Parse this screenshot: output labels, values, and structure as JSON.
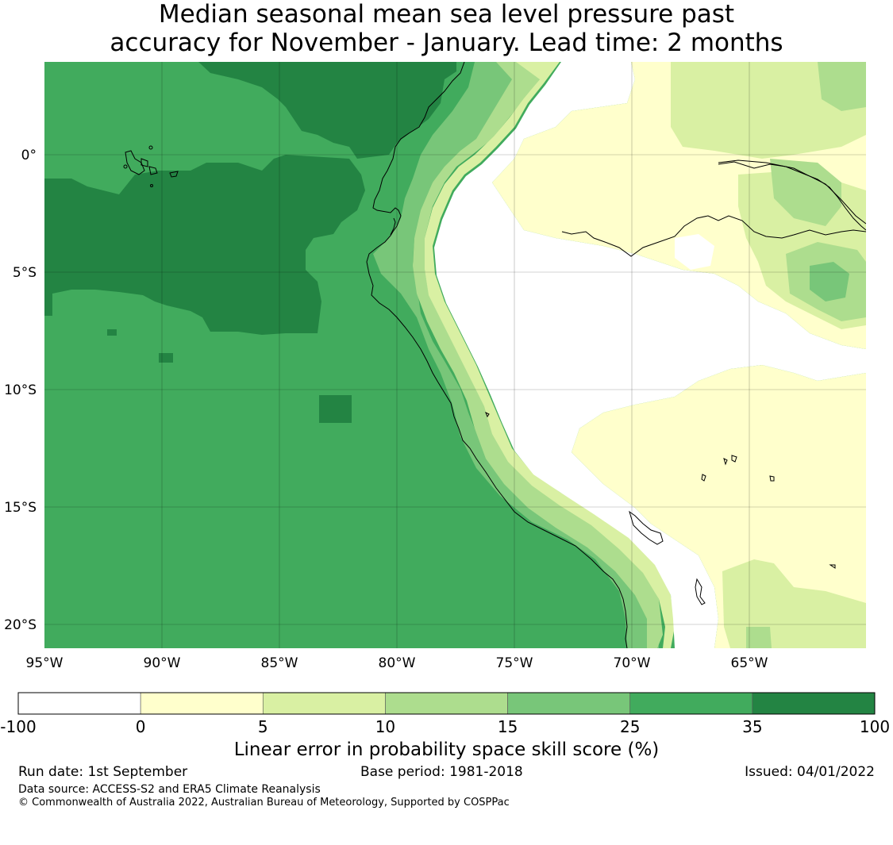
{
  "title": {
    "line1": "Median seasonal mean sea level pressure past",
    "line2": "accuracy for November - January. Lead time: 2 months"
  },
  "map": {
    "lat_labels": [
      "0°",
      "5°S",
      "10°S",
      "15°S",
      "20°S"
    ],
    "lon_labels": [
      "95°W",
      "90°W",
      "85°W",
      "80°W",
      "75°W",
      "70°W",
      "65°W"
    ]
  },
  "colorbar": {
    "title": "Linear error in probability space skill score (%)",
    "tick_labels": [
      "-100",
      "0",
      "5",
      "10",
      "15",
      "25",
      "35",
      "100"
    ],
    "colors": [
      "#ffffff",
      "#ffffcc",
      "#d9f0a3",
      "#addd8e",
      "#78c679",
      "#41ab5d",
      "#238443"
    ]
  },
  "footer": {
    "run_date": "Run date: 1st September",
    "base_period": "Base period: 1981-2018",
    "issued": "Issued: 04/01/2022",
    "data_source": "Data source: ACCESS-S2 and ERA5 Climate Reanalysis",
    "copyright": "© Commonwealth of Australia 2022, Australian Bureau of Meteorology, Supported by COSPPac"
  }
}
